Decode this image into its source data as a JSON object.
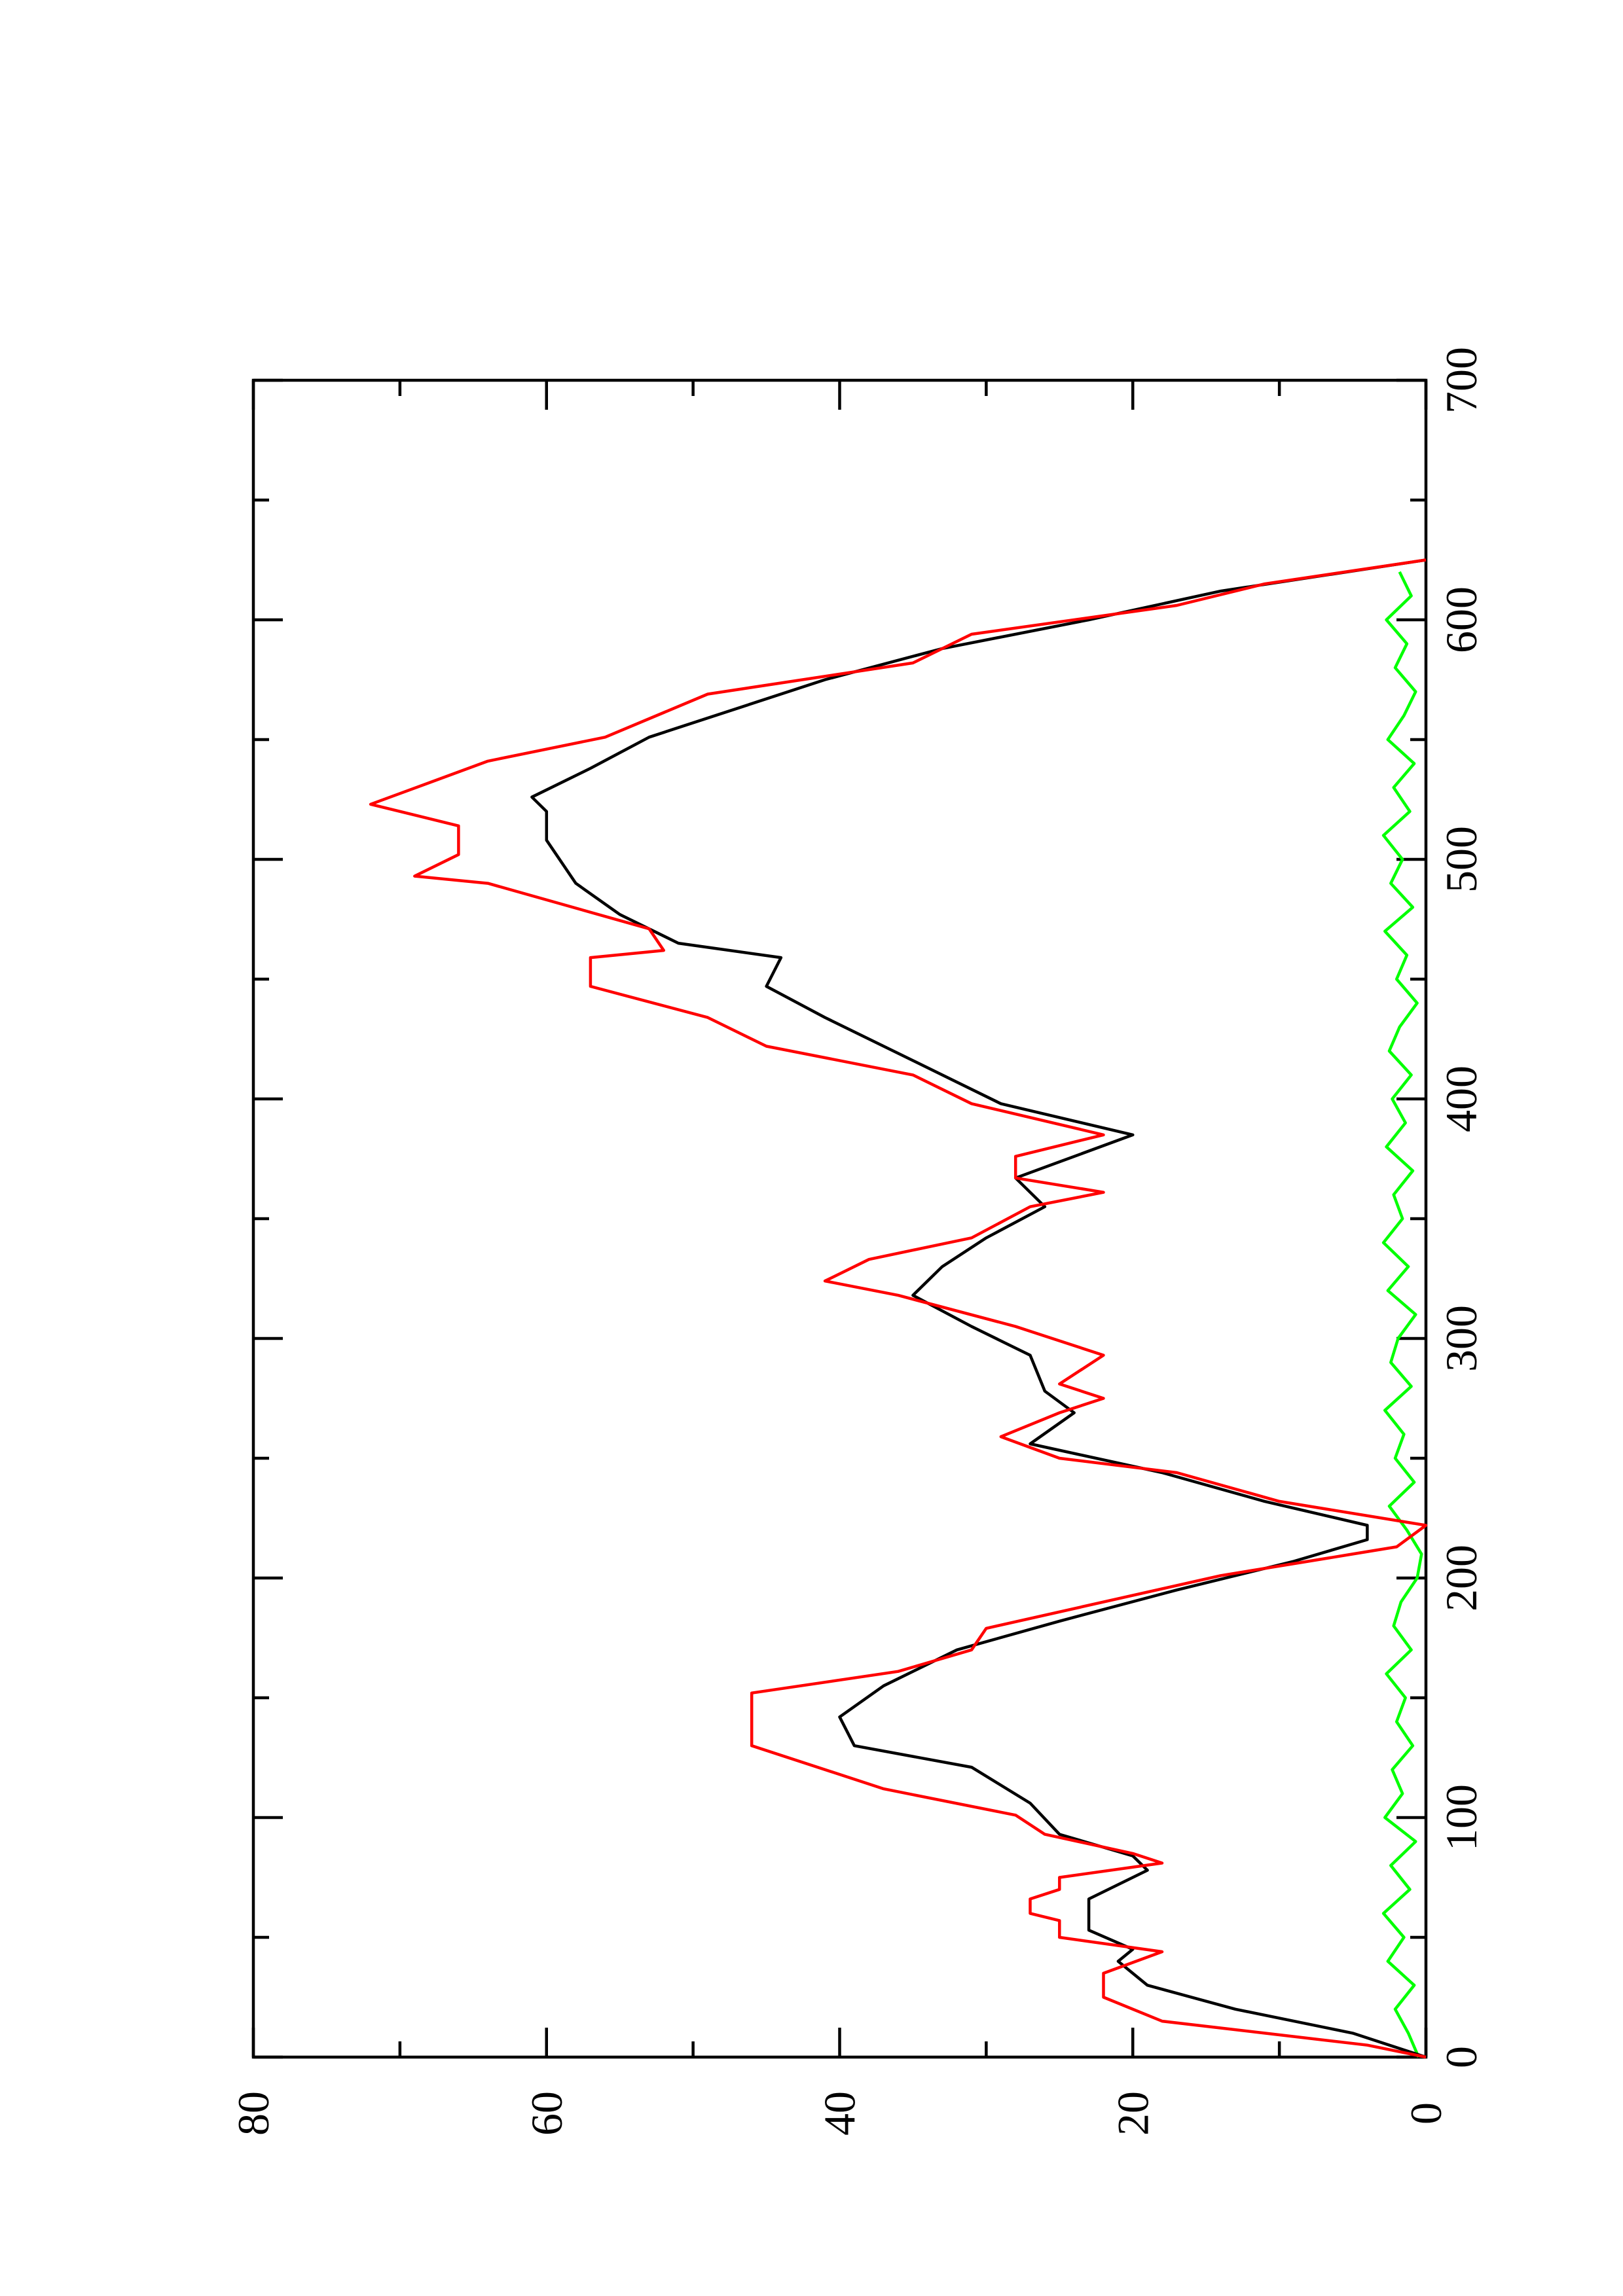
{
  "chart_data": {
    "type": "line",
    "xlim": [
      0,
      700
    ],
    "xticks": [
      0,
      100,
      200,
      300,
      400,
      500,
      600,
      700
    ],
    "xminorticks": [
      50,
      150,
      250,
      350,
      450,
      550,
      650
    ],
    "ylim": [
      0,
      80
    ],
    "yticks": [
      0,
      20,
      40,
      60,
      80
    ],
    "yminorticks": [
      10,
      30,
      50,
      70
    ],
    "series": [
      {
        "color": "#ff0000",
        "x": [
          0,
          5,
          10,
          15,
          25,
          35,
          44,
          50,
          57,
          60,
          66,
          70,
          75,
          81,
          85,
          93,
          101,
          112,
          130,
          152,
          161,
          170,
          179,
          190,
          201,
          207,
          210,
          213,
          222,
          232,
          244,
          250,
          259,
          269,
          275,
          281,
          293,
          305,
          318,
          324,
          333,
          342,
          355,
          361,
          367,
          376,
          385,
          398,
          410,
          422,
          434,
          447,
          459,
          462,
          471,
          490,
          493,
          502,
          514,
          523,
          532,
          541,
          551,
          569,
          582,
          594,
          606,
          615,
          625
        ],
        "values": [
          0,
          4,
          11,
          18,
          22,
          22,
          18,
          25,
          25,
          27,
          27,
          25,
          25,
          18,
          20,
          26,
          28,
          37,
          46,
          46,
          36,
          31,
          30,
          22,
          14,
          8,
          5,
          2,
          0,
          10,
          17,
          25,
          29,
          25,
          22,
          25,
          22,
          28,
          36,
          41,
          38,
          31,
          27,
          22,
          28,
          28,
          22,
          31,
          35,
          45,
          49,
          57,
          57,
          52,
          53,
          64,
          69,
          66,
          66,
          72,
          68,
          64,
          56,
          49,
          35,
          31,
          17,
          11,
          0
        ]
      },
      {
        "color": "#000000",
        "x": [
          0,
          10,
          20,
          30,
          40,
          45,
          53,
          66,
          78,
          84,
          93,
          106,
          121,
          130,
          142,
          155,
          170,
          182,
          195,
          207,
          216,
          222,
          232,
          244,
          256,
          269,
          278,
          293,
          305,
          318,
          330,
          342,
          355,
          367,
          385,
          398,
          416,
          434,
          447,
          459,
          465,
          477,
          490,
          508,
          520,
          526,
          538,
          551,
          575,
          588,
          600,
          612,
          625
        ],
        "values": [
          0,
          5,
          13,
          19,
          21,
          20,
          23,
          23,
          19,
          20,
          25,
          27,
          31,
          39,
          40,
          37,
          32,
          25,
          17,
          9,
          4,
          4,
          11,
          18,
          27,
          24,
          26,
          27,
          31,
          35,
          33,
          30,
          26,
          28,
          20,
          29,
          35,
          41,
          45,
          44,
          51,
          55,
          58,
          60,
          60,
          61,
          57,
          53,
          41,
          33,
          23,
          14,
          0
        ]
      },
      {
        "color": "#00ff00",
        "x": [
          0,
          10,
          20,
          30,
          40,
          50,
          60,
          70,
          80,
          90,
          100,
          110,
          120,
          130,
          140,
          150,
          160,
          170,
          180,
          190,
          200,
          210,
          220,
          230,
          240,
          250,
          260,
          270,
          280,
          290,
          300,
          310,
          320,
          330,
          340,
          350,
          360,
          370,
          380,
          390,
          400,
          410,
          420,
          430,
          440,
          450,
          460,
          470,
          480,
          490,
          500,
          510,
          520,
          530,
          540,
          550,
          560,
          570,
          580,
          590,
          600,
          610,
          620
        ],
        "values": [
          0.5,
          1.2,
          2.1,
          0.8,
          2.6,
          1.5,
          2.9,
          1.1,
          2.4,
          0.7,
          2.8,
          1.6,
          2.3,
          0.9,
          2.0,
          1.4,
          2.7,
          1.0,
          2.2,
          1.7,
          0.6,
          0.3,
          1.3,
          2.5,
          0.8,
          2.1,
          1.5,
          2.8,
          1.0,
          2.4,
          1.9,
          0.7,
          2.6,
          1.2,
          2.9,
          1.6,
          2.2,
          0.9,
          2.7,
          1.4,
          2.3,
          1.0,
          2.5,
          1.8,
          0.6,
          2.0,
          1.3,
          2.8,
          0.9,
          2.4,
          1.6,
          2.9,
          1.1,
          2.2,
          0.8,
          2.6,
          1.5,
          0.7,
          2.1,
          1.3,
          2.7,
          1.0,
          1.8
        ]
      }
    ]
  }
}
